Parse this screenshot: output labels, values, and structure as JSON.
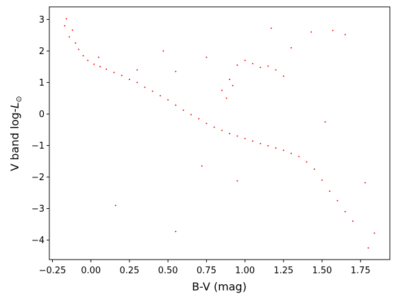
{
  "chart_data": {
    "type": "scatter",
    "title": "",
    "xlabel": "B-V (mag)",
    "ylabel": "V band log-",
    "ylabel_symbol": "L",
    "ylabel_subscript": "⊙",
    "xlim": [
      -0.27,
      1.94
    ],
    "ylim": [
      -4.62,
      3.4
    ],
    "xticks": [
      -0.25,
      0.0,
      0.25,
      0.5,
      0.75,
      1.0,
      1.25,
      1.5,
      1.75
    ],
    "xtick_labels": [
      "−0.25",
      "0.00",
      "0.25",
      "0.50",
      "0.75",
      "1.00",
      "1.25",
      "1.50",
      "1.75"
    ],
    "yticks": [
      3,
      2,
      1,
      0,
      -1,
      -2,
      -3,
      -4
    ],
    "ytick_labels": [
      "3",
      "2",
      "1",
      "0",
      "−1",
      "−2",
      "−3",
      "−4"
    ],
    "grid": false,
    "marker_color": "#ff0000",
    "series": [
      {
        "name": "",
        "points": [
          [
            -0.16,
            3.02
          ],
          [
            -0.17,
            2.8
          ],
          [
            -0.12,
            2.66
          ],
          [
            -0.14,
            2.45
          ],
          [
            -0.1,
            2.25
          ],
          [
            -0.08,
            2.05
          ],
          [
            -0.05,
            1.85
          ],
          [
            -0.02,
            1.7
          ],
          [
            0.02,
            1.58
          ],
          [
            0.06,
            1.5
          ],
          [
            0.1,
            1.42
          ],
          [
            0.15,
            1.32
          ],
          [
            0.2,
            1.22
          ],
          [
            0.25,
            1.1
          ],
          [
            0.3,
            1.0
          ],
          [
            0.35,
            0.85
          ],
          [
            0.4,
            0.72
          ],
          [
            0.45,
            0.58
          ],
          [
            0.5,
            0.45
          ],
          [
            0.55,
            0.28
          ],
          [
            0.6,
            0.12
          ],
          [
            0.65,
            -0.02
          ],
          [
            0.7,
            -0.15
          ],
          [
            0.75,
            -0.3
          ],
          [
            0.8,
            -0.42
          ],
          [
            0.85,
            -0.52
          ],
          [
            0.9,
            -0.62
          ],
          [
            0.95,
            -0.7
          ],
          [
            1.0,
            -0.78
          ],
          [
            1.05,
            -0.86
          ],
          [
            1.1,
            -0.94
          ],
          [
            1.15,
            -1.01
          ],
          [
            1.2,
            -1.08
          ],
          [
            1.25,
            -1.15
          ],
          [
            1.3,
            -1.25
          ],
          [
            1.35,
            -1.35
          ],
          [
            1.4,
            -1.52
          ],
          [
            1.45,
            -1.75
          ],
          [
            1.5,
            -2.1
          ],
          [
            1.55,
            -2.45
          ],
          [
            1.6,
            -2.75
          ],
          [
            1.65,
            -3.1
          ],
          [
            1.7,
            -3.4
          ],
          [
            1.84,
            -3.78
          ],
          [
            1.8,
            -4.25
          ],
          [
            1.78,
            -2.18
          ],
          [
            1.52,
            -0.25
          ],
          [
            0.95,
            -2.12
          ],
          [
            0.72,
            -1.65
          ],
          [
            0.16,
            -2.9
          ],
          [
            0.55,
            -3.73
          ],
          [
            0.85,
            0.75
          ],
          [
            0.9,
            1.1
          ],
          [
            0.95,
            1.55
          ],
          [
            1.0,
            1.7
          ],
          [
            1.05,
            1.6
          ],
          [
            1.1,
            1.48
          ],
          [
            1.15,
            1.52
          ],
          [
            1.2,
            1.4
          ],
          [
            0.88,
            0.5
          ],
          [
            0.92,
            0.9
          ],
          [
            1.17,
            2.72
          ],
          [
            1.43,
            2.6
          ],
          [
            1.57,
            2.65
          ],
          [
            1.65,
            2.52
          ],
          [
            1.3,
            2.1
          ],
          [
            1.25,
            1.2
          ],
          [
            0.47,
            2.0
          ],
          [
            0.75,
            1.8
          ],
          [
            0.55,
            1.35
          ],
          [
            0.3,
            1.4
          ],
          [
            0.05,
            1.8
          ]
        ]
      }
    ]
  }
}
